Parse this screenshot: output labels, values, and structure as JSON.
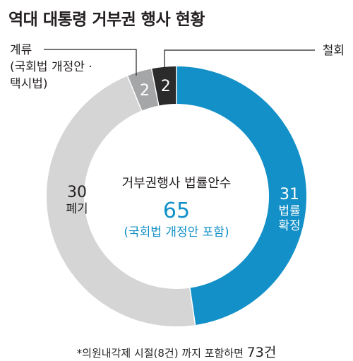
{
  "chart_data": {
    "type": "pie",
    "title": "역대 대통령 거부권 행사 현황",
    "center": {
      "label": "거부권행사 법률안수",
      "value": "65",
      "sub": "(국회법 개정안 포함)"
    },
    "slices": [
      {
        "value": 31,
        "label_lines": [
          "법률",
          "확정"
        ],
        "color": "#1390c8"
      },
      {
        "value": 30,
        "label_lines": [
          "폐기"
        ],
        "color": "#d5d5d6"
      },
      {
        "value": 2,
        "label_lines": [
          "계류",
          "(국회법 개정안 ·",
          "택시법)"
        ],
        "color": "#a4a6a8"
      },
      {
        "value": 2,
        "label_lines": [
          "철회"
        ],
        "color": "#2b2b2c"
      }
    ],
    "footnote": {
      "text": "*의원내각제 시절(8건) 까지 포함하면 ",
      "total": "73건"
    }
  }
}
